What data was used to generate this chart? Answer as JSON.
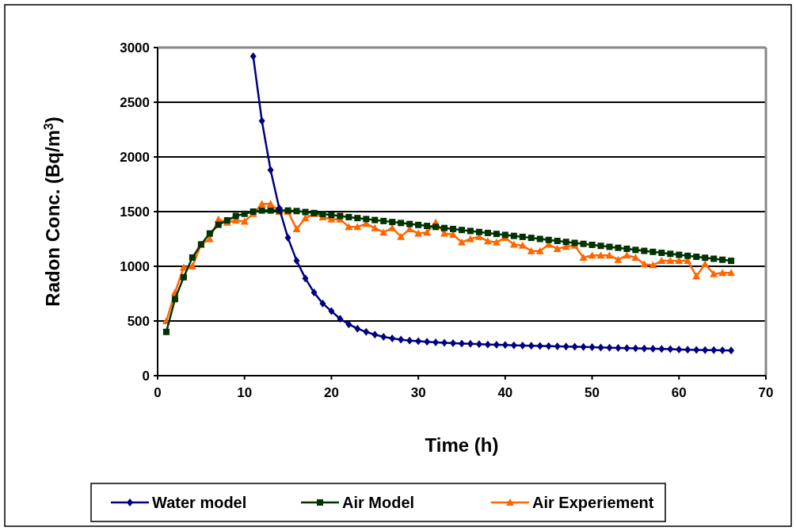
{
  "chart_data": {
    "type": "line",
    "xlabel": "Time (h)",
    "ylabel": "Radon Conc. (Bq/m$^{3}$)",
    "xlim": [
      0,
      70
    ],
    "xticks": [
      0,
      10,
      20,
      30,
      40,
      50,
      60,
      70
    ],
    "ylim": [
      0,
      3000
    ],
    "yticks": [
      0,
      500,
      1000,
      1500,
      2000,
      2500,
      3000
    ],
    "grid": "y",
    "legend": "bottom",
    "series": [
      {
        "name": "Water model",
        "color": "#000080",
        "marker": "diamond",
        "x": [
          11,
          12,
          13,
          14,
          15,
          16,
          17,
          18,
          19,
          20,
          21,
          22,
          23,
          24,
          25,
          26,
          27,
          28,
          29,
          30,
          31,
          32,
          33,
          34,
          35,
          36,
          37,
          38,
          39,
          40,
          41,
          42,
          43,
          44,
          45,
          46,
          47,
          48,
          49,
          50,
          51,
          52,
          53,
          54,
          55,
          56,
          57,
          58,
          59,
          60,
          61,
          62,
          63,
          64,
          65,
          66
        ],
        "values": [
          2920,
          2330,
          1880,
          1530,
          1260,
          1050,
          890,
          760,
          660,
          590,
          520,
          470,
          430,
          400,
          375,
          355,
          340,
          330,
          320,
          315,
          310,
          305,
          300,
          297,
          294,
          291,
          288,
          285,
          282,
          280,
          278,
          276,
          274,
          272,
          270,
          268,
          266,
          264,
          262,
          260,
          258,
          256,
          254,
          252,
          250,
          248,
          246,
          244,
          242,
          240,
          238,
          236,
          234,
          233,
          232,
          230
        ]
      },
      {
        "name": "Air Model",
        "color": "#003300",
        "marker": "square",
        "x": [
          1,
          2,
          3,
          4,
          5,
          6,
          7,
          8,
          9,
          10,
          11,
          12,
          13,
          14,
          15,
          16,
          17,
          18,
          19,
          20,
          21,
          22,
          23,
          24,
          25,
          26,
          27,
          28,
          29,
          30,
          31,
          32,
          33,
          34,
          35,
          36,
          37,
          38,
          39,
          40,
          41,
          42,
          43,
          44,
          45,
          46,
          47,
          48,
          49,
          50,
          51,
          52,
          53,
          54,
          55,
          56,
          57,
          58,
          59,
          60,
          61,
          62,
          63,
          64,
          65,
          66
        ],
        "values": [
          400,
          700,
          900,
          1080,
          1200,
          1300,
          1380,
          1420,
          1460,
          1480,
          1500,
          1510,
          1510,
          1510,
          1510,
          1505,
          1496,
          1487,
          1478,
          1469,
          1460,
          1450,
          1441,
          1432,
          1423,
          1414,
          1405,
          1396,
          1387,
          1378,
          1369,
          1360,
          1350,
          1341,
          1332,
          1323,
          1314,
          1305,
          1296,
          1287,
          1278,
          1269,
          1260,
          1250,
          1241,
          1232,
          1223,
          1214,
          1205,
          1196,
          1187,
          1178,
          1169,
          1160,
          1150,
          1141,
          1132,
          1123,
          1114,
          1105,
          1096,
          1087,
          1078,
          1069,
          1060,
          1050
        ]
      },
      {
        "name": "Air Experiement",
        "color": "#ff6600",
        "marker": "triangle",
        "x": [
          1,
          2,
          3,
          4,
          5,
          6,
          7,
          8,
          9,
          10,
          11,
          12,
          13,
          14,
          15,
          16,
          17,
          18,
          19,
          20,
          21,
          22,
          23,
          24,
          25,
          26,
          27,
          28,
          29,
          30,
          31,
          32,
          33,
          34,
          35,
          36,
          37,
          38,
          39,
          40,
          41,
          42,
          43,
          44,
          45,
          46,
          47,
          48,
          49,
          50,
          51,
          52,
          53,
          54,
          55,
          56,
          57,
          58,
          59,
          60,
          61,
          62,
          63,
          64,
          65,
          66
        ],
        "values": [
          500,
          760,
          990,
          1000,
          1200,
          1250,
          1430,
          1400,
          1420,
          1410,
          1480,
          1570,
          1570,
          1500,
          1500,
          1340,
          1440,
          1480,
          1450,
          1430,
          1430,
          1360,
          1360,
          1390,
          1350,
          1310,
          1350,
          1270,
          1340,
          1300,
          1310,
          1400,
          1300,
          1290,
          1220,
          1250,
          1270,
          1230,
          1220,
          1260,
          1200,
          1190,
          1140,
          1140,
          1200,
          1160,
          1180,
          1190,
          1080,
          1100,
          1100,
          1100,
          1060,
          1100,
          1080,
          1020,
          1010,
          1050,
          1050,
          1050,
          1050,
          910,
          1020,
          930,
          940,
          940
        ]
      }
    ]
  }
}
